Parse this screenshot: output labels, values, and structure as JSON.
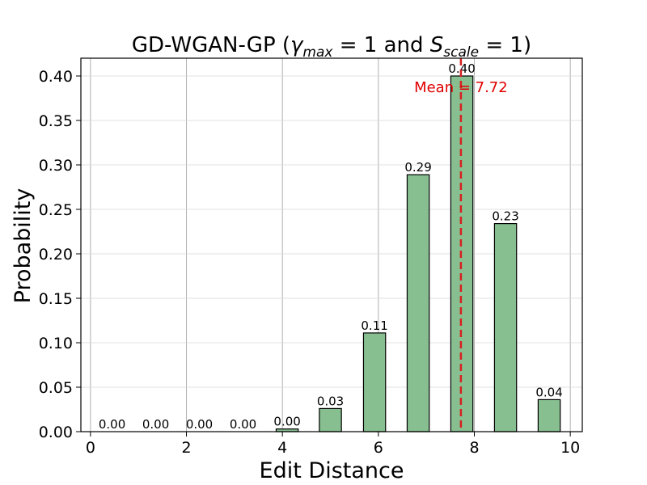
{
  "chart_data": {
    "type": "bar",
    "title": {
      "prefix": "GD-WGAN-GP (",
      "gamma_symbol": "γ",
      "gamma_sub": "max",
      "eq1": " = 1 and ",
      "s_symbol": "S",
      "s_sub": "scale",
      "eq2": " = 1)"
    },
    "xlabel": "Edit Distance",
    "ylabel": "Probability",
    "xlim": [
      -0.2,
      10.25
    ],
    "ylim": [
      0,
      0.42
    ],
    "xticks": [
      0,
      2,
      4,
      6,
      8,
      10
    ],
    "xtick_labels": [
      "0",
      "2",
      "4",
      "6",
      "8",
      "10"
    ],
    "yticks": [
      0,
      0.05,
      0.1,
      0.15,
      0.2,
      0.25,
      0.3,
      0.35,
      0.4
    ],
    "ytick_labels": [
      "0.00",
      "0.05",
      "0.10",
      "0.15",
      "0.20",
      "0.25",
      "0.30",
      "0.35",
      "0.40"
    ],
    "bar_width": 0.46,
    "bars": [
      {
        "x": 0.45,
        "value": 0.0,
        "label": "0.00"
      },
      {
        "x": 1.36,
        "value": 0.0,
        "label": "0.00"
      },
      {
        "x": 2.27,
        "value": 0.0,
        "label": "0.00"
      },
      {
        "x": 3.18,
        "value": 0.0,
        "label": "0.00"
      },
      {
        "x": 4.1,
        "value": 0.003,
        "label": "0.00"
      },
      {
        "x": 5.0,
        "value": 0.026,
        "label": "0.03"
      },
      {
        "x": 5.92,
        "value": 0.111,
        "label": "0.11"
      },
      {
        "x": 6.83,
        "value": 0.289,
        "label": "0.29"
      },
      {
        "x": 7.74,
        "value": 0.4,
        "label": "0.40"
      },
      {
        "x": 8.65,
        "value": 0.234,
        "label": "0.23"
      },
      {
        "x": 9.56,
        "value": 0.036,
        "label": "0.04"
      }
    ],
    "mean": {
      "value": 7.72,
      "label": "Mean = 7.72"
    },
    "grid": true,
    "colors": {
      "bar_fill": "#87bf91",
      "bar_edge": "#000000",
      "mean_line": "#d62020",
      "mean_text": "#e00000",
      "grid": "#d9d9d9"
    }
  }
}
